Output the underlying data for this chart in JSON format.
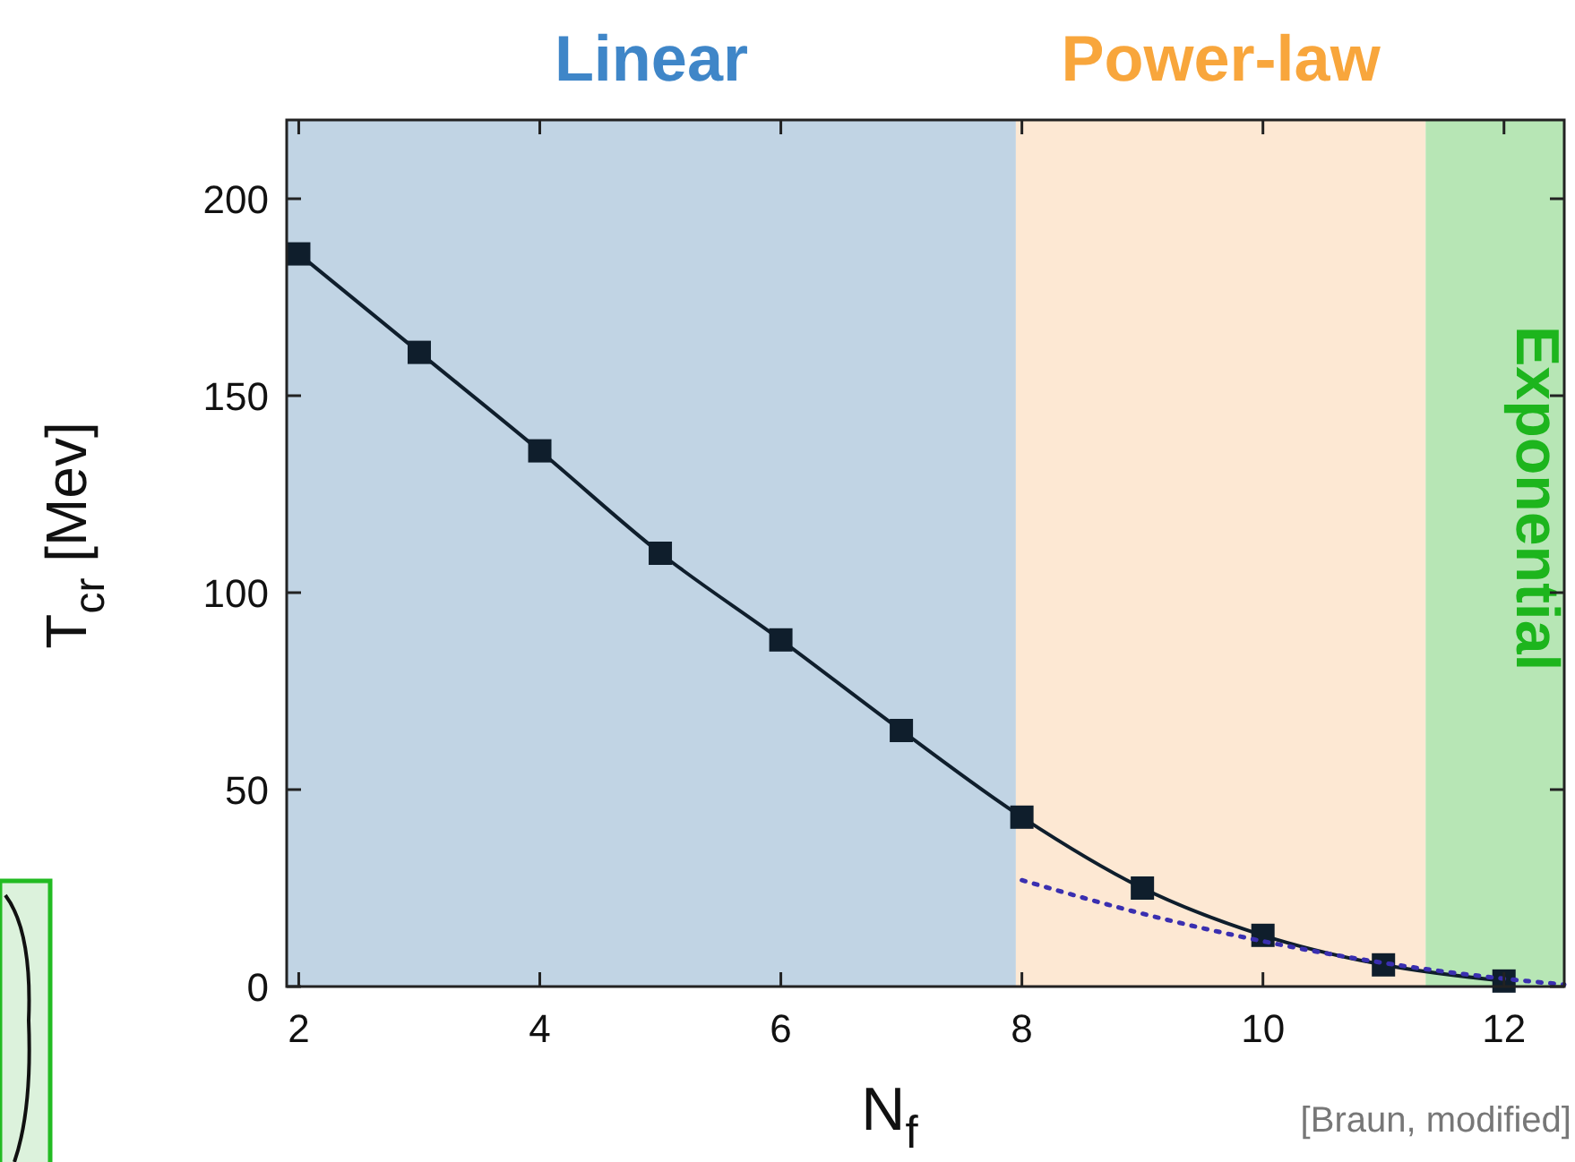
{
  "chart_data": {
    "type": "line",
    "xlabel": "N$_{f}$",
    "ylabel": "T$_{cr}$ [Mev]",
    "xlim": [
      1.9,
      12.5
    ],
    "ylim": [
      0,
      220
    ],
    "xticks": [
      2,
      4,
      6,
      8,
      10,
      12
    ],
    "yticks": [
      0,
      50,
      100,
      150,
      200
    ],
    "grid": false,
    "series": [
      {
        "color": "#0f1e2c",
        "marker": "square",
        "line_style": "solid",
        "x": [
          2,
          3,
          4,
          5,
          6,
          7,
          8,
          9,
          10,
          11,
          12
        ],
        "values": [
          186,
          161,
          136,
          110,
          88,
          65,
          43,
          25,
          13,
          5.5,
          1.4
        ]
      },
      {
        "color": "#3a2fb0",
        "marker": "none",
        "line_style": "dotted",
        "x": [
          8,
          9,
          10,
          11,
          12,
          12.5
        ],
        "values": [
          27,
          18.5,
          11.5,
          6,
          2,
          0.5
        ]
      }
    ],
    "bands": [
      {
        "axis": "x",
        "from": 1.9,
        "to": 7.95,
        "label": "Linear",
        "color": "#c1d4e4"
      },
      {
        "axis": "x",
        "from": 7.95,
        "to": 11.35,
        "label": "Power-law",
        "color": "#fde8d3"
      },
      {
        "axis": "x",
        "from": 11.35,
        "to": 12.5,
        "label": "Exponential",
        "color": "#b7e6b5"
      }
    ],
    "annotations": [
      "[Braun, modified]"
    ]
  }
}
